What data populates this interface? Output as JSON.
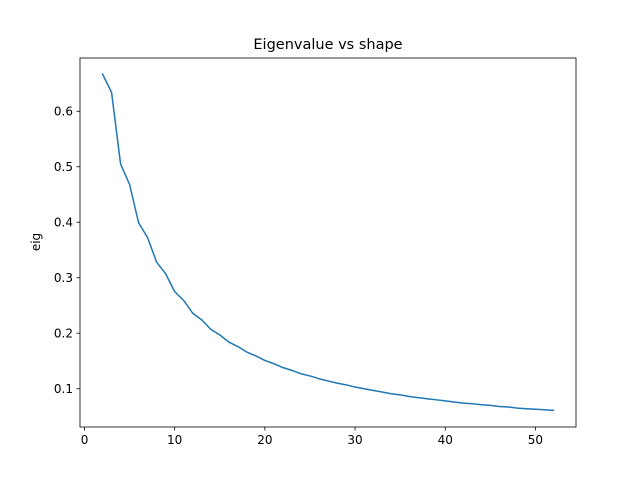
{
  "chart_data": {
    "type": "line",
    "title": "Eigenvalue vs shape",
    "xlabel": "",
    "ylabel": "eig",
    "xlim": [
      -0.5,
      54.5
    ],
    "ylim": [
      0.031,
      0.696
    ],
    "grid": false,
    "line_color": "#1f77b4",
    "x_ticks": [
      0,
      10,
      20,
      30,
      40,
      50
    ],
    "y_ticks": [
      0.1,
      0.2,
      0.3,
      0.4,
      0.5,
      0.6
    ],
    "x_tick_labels": [
      "0",
      "10",
      "20",
      "30",
      "40",
      "50"
    ],
    "y_tick_labels": [
      "0.1",
      "0.2",
      "0.3",
      "0.4",
      "0.5",
      "0.6"
    ],
    "series": [
      {
        "x": [
          2,
          3,
          4,
          5,
          6,
          7,
          8,
          9,
          10,
          11,
          12,
          13,
          14,
          15,
          16,
          17,
          18,
          19,
          20,
          21,
          22,
          23,
          24,
          25,
          26,
          27,
          28,
          29,
          30,
          31,
          32,
          33,
          34,
          35,
          36,
          37,
          38,
          39,
          40,
          41,
          42,
          43,
          44,
          45,
          46,
          47,
          48,
          49,
          50,
          51,
          52
        ],
        "y": [
          0.667,
          0.634,
          0.505,
          0.468,
          0.399,
          0.372,
          0.328,
          0.307,
          0.275,
          0.259,
          0.236,
          0.224,
          0.207,
          0.197,
          0.184,
          0.176,
          0.166,
          0.159,
          0.151,
          0.145,
          0.138,
          0.133,
          0.127,
          0.123,
          0.118,
          0.114,
          0.11,
          0.107,
          0.103,
          0.1,
          0.097,
          0.094,
          0.091,
          0.089,
          0.086,
          0.084,
          0.082,
          0.08,
          0.078,
          0.076,
          0.074,
          0.073,
          0.071,
          0.07,
          0.068,
          0.067,
          0.065,
          0.064,
          0.063,
          0.062,
          0.061
        ]
      }
    ]
  }
}
